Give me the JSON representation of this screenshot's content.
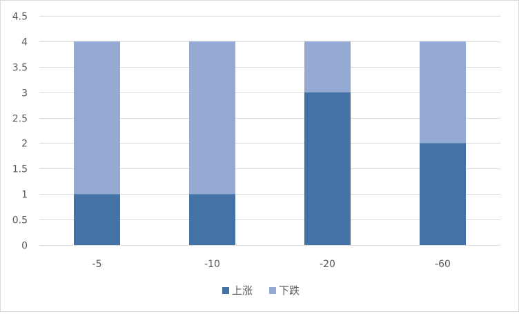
{
  "chart_data": {
    "type": "bar",
    "stacked": true,
    "categories": [
      "-5",
      "-10",
      "-20",
      "-60"
    ],
    "series": [
      {
        "name": "上涨",
        "values": [
          1,
          1,
          3,
          2
        ],
        "color": "#4472A6"
      },
      {
        "name": "下跌",
        "values": [
          3,
          3,
          1,
          2
        ],
        "color": "#94AAD3"
      }
    ],
    "ylim": [
      0,
      4.5
    ],
    "y_ticks": [
      "0",
      "0.5",
      "1",
      "1.5",
      "2",
      "2.5",
      "3",
      "3.5",
      "4",
      "4.5"
    ],
    "y_tick_values": [
      0,
      0.5,
      1,
      1.5,
      2,
      2.5,
      3,
      3.5,
      4,
      4.5
    ],
    "title": "",
    "xlabel": "",
    "ylabel": "",
    "grid": true,
    "gridline_color": "#d9d9d9",
    "legend_position": "bottom"
  }
}
